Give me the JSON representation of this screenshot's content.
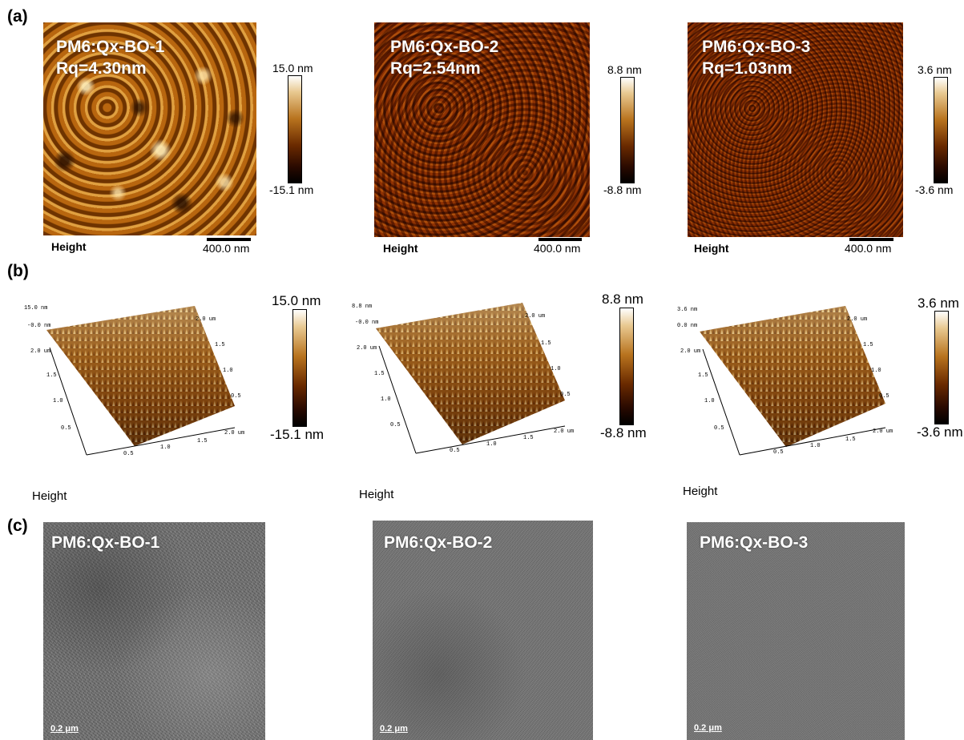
{
  "panel_labels": {
    "a": "(a)",
    "b": "(b)",
    "c": "(c)"
  },
  "afm_2d": [
    {
      "sample": "PM6:Qx-BO-1",
      "rq": "Rq=4.30nm",
      "cb_max": "15.0 nm",
      "cb_min": "-15.1 nm",
      "channel": "Height",
      "scale": "400.0 nm"
    },
    {
      "sample": "PM6:Qx-BO-2",
      "rq": "Rq=2.54nm",
      "cb_max": "8.8 nm",
      "cb_min": "-8.8 nm",
      "channel": "Height",
      "scale": "400.0 nm"
    },
    {
      "sample": "PM6:Qx-BO-3",
      "rq": "Rq=1.03nm",
      "cb_max": "3.6 nm",
      "cb_min": "-3.6 nm",
      "channel": "Height",
      "scale": "400.0 nm"
    }
  ],
  "afm_3d": [
    {
      "z_top": "15.0 nm",
      "z_mid": "-0.0 nm",
      "cb_max": "15.0 nm",
      "cb_min": "-15.1 nm",
      "channel": "Height"
    },
    {
      "z_top": "8.8 nm",
      "z_mid": "-0.0 nm",
      "cb_max": "8.8 nm",
      "cb_min": "-8.8 nm",
      "channel": "Height"
    },
    {
      "z_top": "3.6 nm",
      "z_mid": "0.0 nm",
      "cb_max": "3.6 nm",
      "cb_min": "-3.6 nm",
      "channel": "Height"
    }
  ],
  "axis_ticks": {
    "corner": "2.0 um",
    "y_ticks": [
      "2.0 um",
      "1.5",
      "1.0",
      "0.5"
    ],
    "x_ticks": [
      "0.5",
      "1.0",
      "1.5",
      "2.0 um"
    ],
    "right_ticks": [
      "1.5",
      "1.0",
      "0.5"
    ]
  },
  "tem": [
    {
      "sample": "PM6:Qx-BO-1",
      "scale": "0.2 μm"
    },
    {
      "sample": "PM6:Qx-BO-2",
      "scale": "0.2 μm"
    },
    {
      "sample": "PM6:Qx-BO-3",
      "scale": "0.2 μm"
    }
  ],
  "colors": {
    "afm_mid": "#a65a10",
    "tem_gray": "#707070"
  }
}
